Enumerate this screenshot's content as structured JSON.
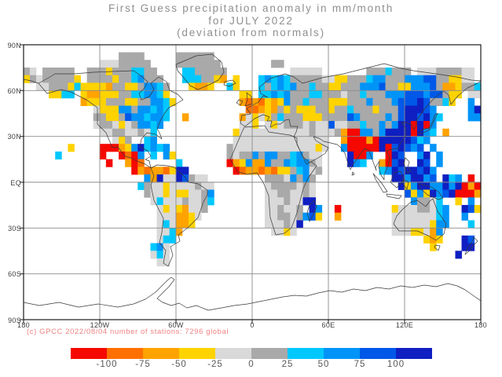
{
  "title": {
    "line1": "First Guess precipitation anomaly in mm/month",
    "line2": "for JULY 2022",
    "line3": "(deviation from normals)"
  },
  "footer": {
    "credit": "(c) GPCC 2022/08/04 number of stations: 7296 global"
  },
  "axes": {
    "lat_labels": [
      "90N",
      "60N",
      "30N",
      "EQ",
      "30S",
      "60S",
      "90S"
    ],
    "lon_labels": [
      "180",
      "120W",
      "60W",
      "0",
      "60E",
      "120E",
      "180"
    ]
  },
  "colorbar": {
    "tick_labels": [
      "-100",
      "-75",
      "-50",
      "-25",
      "0",
      "25",
      "50",
      "75",
      "100"
    ],
    "colors": [
      "#f50800",
      "#ff7000",
      "#ffa300",
      "#ffd300",
      "#d9d9d9",
      "#a9a9a9",
      "#00c8ff",
      "#0094f8",
      "#0058e8",
      "#0f1fc2"
    ]
  },
  "chart_data": {
    "type": "heatmap",
    "title": "First Guess precipitation anomaly in mm/month for JULY 2022 (deviation from normals)",
    "units": "mm/month",
    "source_note": "(c) GPCC 2022/08/04 number of stations: 7296 global",
    "stations_global": 7296,
    "grid_on": true,
    "legend_position": "bottom",
    "x_axis": {
      "labels": [
        "180",
        "120W",
        "60W",
        "0",
        "60E",
        "120E",
        "180"
      ],
      "range_deg": [
        -180,
        180
      ]
    },
    "y_axis": {
      "labels": [
        "90N",
        "60N",
        "30N",
        "EQ",
        "30S",
        "60S",
        "90S"
      ],
      "range_deg": [
        90,
        -90
      ]
    },
    "color_bins": {
      "labels": [
        "< -100",
        "-100 to -75",
        "-75 to -50",
        "-50 to -25",
        "-25 to 0",
        "0 to 25",
        "25 to 50",
        "50 to 75",
        "75 to 100",
        "> 100"
      ],
      "colors": [
        "#f50800",
        "#ff7000",
        "#ffa300",
        "#ffd300",
        "#d9d9d9",
        "#a9a9a9",
        "#00c8ff",
        "#0094f8",
        "#0058e8",
        "#0f1fc2"
      ]
    },
    "palette": {
      "r": "#f50800",
      "O": "#ff7000",
      "o": "#ffa300",
      "y": "#ffd300",
      "l": "#d9d9d9",
      "g": "#a9a9a9",
      "c": "#00c8ff",
      "b": "#0094f8",
      "B": "#0058e8",
      "d": "#0f1fc2"
    },
    "grid": {
      "cols": 72,
      "rows": 36,
      "cell_deg": 5,
      "lon_start": -180,
      "lat_start": 90,
      "codes": {
        "r": "< -100",
        "O": "-100 to -75",
        "o": "-75 to -50",
        "y": "-50 to -25",
        "l": "-25 to 0",
        "g": "0 to 25",
        "c": "25 to 50",
        "b": "50 to 75",
        "B": "75 to 100",
        "d": "> 100",
        ".": "no data"
      },
      "rows_data": [
        "........................................................................",
        "...............gggg.....gggggg..........................................",
        "............lllggggg....ggggggg........gg...............................",
        "gl.ggggg..gggygggccgg....ccggggg..........lllll.......gggcggg.lllggggll.",
        "yglgggggy.ggggyggcbggg...cccggyo.y...cbcbcgggggllyygggcbbgggbbbBBggyyll.",
        "..llgggycyyyyoggyygbbcg...yooy..cy...cgcbcbggcggyygggbbbBggyybbbBgooyggc",
        "....yycc.yooyyyggccbbcy...........yy.ccbcbgggccggglggcgggbbbBBBbBBgyy.ll",
        ".........oyyygggyyggbbcy..........oOoOyoybggcgggyyygggbgggbBBBdBggcy..b.",
        "...........lyyybbgbbcbc............OOoyogygyyyggyggcgggygggBdddBb.....bd",
        "...........ggyygBbbcbbc..o........olylygcgggyyyggggBbggggbgBddBdbc....bb",
        "...........lgglylgbbcb............lly.lylggglgllBllggcggbgbddrdrb.......",
        "............llggllglc............ylllllllllllglllgorrbbgbddddrdbc.o.....",
        "..............lyg..cb............lllllllllllllll..orrrordddddBcb........",
        ".......y....rrroybdcbcb.........glllllllllllllyl..brrrrrdrBdBbB.b.......",
        ".....c......r..rOrb.c.by........glggbgbbggcbgll....drrb..rdB..bd.b......",
        ".............r..orO.....c.......royboobggbcbbgl....dbc..orBd..dB.b......",
        ".................roOooOydd.......rOooOoOyygcblg.........cbdBddBdb.......",
        "...................bodlldBgll.........ggglbgbg............ddbddbB.dcb.r.",
        "..................cgllyllllgll........lgggglgl.............dybddbbdbdror",
        "...................gllylyyllgb........llggllgl..............BybydbBdrrro",
        "....................lclllgllgc........lllglldd...............bgglc..y.b.",
        ".....................lylyollg.........llgllg.db..r........ylllgglcb..dBy",
        ".....................lllooyl..........llgglgbBy..o........lllllllcb..b..",
        ".....................lclooy...........lllgld..............llllllybb...c.",
        ".....................llco..............llyl...............lllyylob......",
        ".....................lcc.......................................yoy...dB.",
        "....................cbl.........................................y....dd.",
        "....................lcl.............................................d...",
        ".....................ll.................................................",
        "........................................................................",
        "........................................................................",
        "........................................................................",
        "........................................................................",
        "........................................................................",
        "........................................................................",
        "........................................................................"
      ]
    }
  }
}
